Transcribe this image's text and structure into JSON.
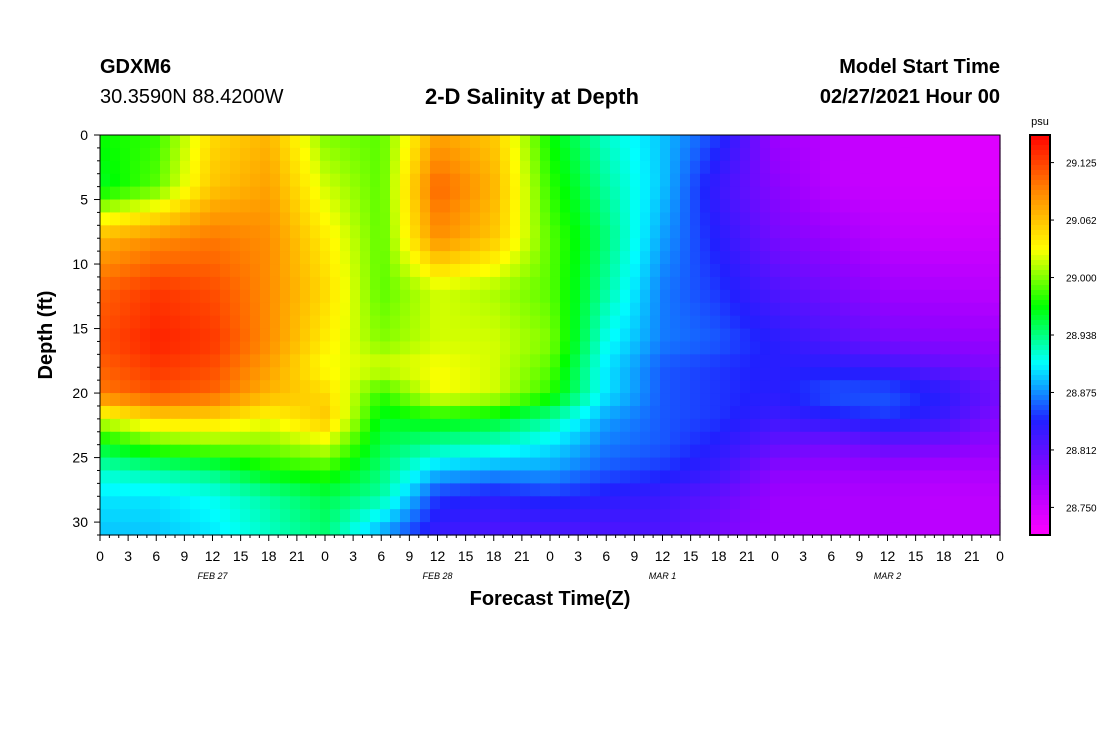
{
  "header": {
    "station": "GDXM6",
    "coordinates": "30.3590N 88.4200W",
    "title": "2-D Salinity at Depth",
    "model_start_label": "Model Start Time",
    "model_start_value": "02/27/2021 Hour 00"
  },
  "chart_data": {
    "type": "heatmap",
    "title": "2-D Salinity at Depth",
    "xlabel": "Forecast Time(Z)",
    "ylabel": "Depth (ft)",
    "ylim": [
      0,
      31
    ],
    "y_ticks": [
      "0",
      "5",
      "10",
      "15",
      "20",
      "25",
      "30"
    ],
    "y_tick_values": [
      0,
      5,
      10,
      15,
      20,
      25,
      30
    ],
    "x_hours": [
      0,
      96
    ],
    "x_tick_labels": [
      "0",
      "3",
      "6",
      "9",
      "12",
      "15",
      "18",
      "21",
      "0",
      "3",
      "6",
      "9",
      "12",
      "15",
      "18",
      "21",
      "0",
      "3",
      "6",
      "9",
      "12",
      "15",
      "18",
      "21",
      "0",
      "3",
      "6",
      "9",
      "12",
      "15",
      "18",
      "21",
      "0"
    ],
    "date_labels": [
      "FEB 27",
      "FEB 28",
      "MAR 1",
      "MAR 2"
    ],
    "colorbar": {
      "unit": "psu",
      "ticks": [
        "29.125",
        "29.062",
        "29.000",
        "28.938",
        "28.875",
        "28.812",
        "28.750"
      ],
      "tick_values": [
        29.125,
        29.0625,
        29.0,
        28.9375,
        28.875,
        28.8125,
        28.75
      ],
      "range": [
        28.72,
        29.155
      ],
      "colors": [
        "#ff00ff",
        "#9900ff",
        "#2020ff",
        "#00ffff",
        "#00ff00",
        "#ffff00",
        "#ff8800",
        "#ff0000"
      ]
    },
    "grid_depths": [
      0,
      4,
      8,
      12,
      16,
      18,
      20,
      22,
      24,
      26,
      28,
      31
    ],
    "grid_hours": [
      0,
      6,
      12,
      18,
      24,
      30,
      36,
      42,
      48,
      54,
      60,
      66,
      72,
      78,
      84,
      90,
      96
    ],
    "salinity": [
      [
        28.97,
        28.98,
        29.05,
        29.07,
        29.0,
        28.99,
        29.08,
        29.06,
        28.97,
        28.92,
        28.89,
        28.85,
        28.78,
        28.76,
        28.75,
        28.74,
        28.74
      ],
      [
        28.96,
        28.99,
        29.06,
        29.08,
        29.02,
        28.99,
        29.11,
        29.07,
        28.98,
        28.93,
        28.89,
        28.83,
        28.79,
        28.76,
        28.75,
        28.74,
        28.74
      ],
      [
        29.07,
        29.09,
        29.1,
        29.09,
        29.04,
        28.99,
        29.09,
        29.06,
        28.99,
        28.94,
        28.88,
        28.84,
        28.8,
        28.78,
        28.76,
        28.75,
        28.75
      ],
      [
        29.11,
        29.13,
        29.12,
        29.09,
        29.05,
        28.99,
        29.02,
        29.01,
        28.99,
        28.93,
        28.87,
        28.85,
        28.82,
        28.8,
        28.78,
        28.77,
        28.76
      ],
      [
        29.12,
        29.14,
        29.13,
        29.09,
        29.04,
        29.0,
        29.02,
        29.02,
        29.0,
        28.91,
        28.87,
        28.86,
        28.84,
        28.82,
        28.8,
        28.79,
        28.78
      ],
      [
        29.11,
        29.13,
        29.12,
        29.08,
        29.03,
        29.02,
        29.03,
        29.02,
        28.99,
        28.9,
        28.86,
        28.85,
        28.84,
        28.84,
        28.83,
        28.81,
        28.79
      ],
      [
        29.1,
        29.12,
        29.11,
        29.07,
        29.05,
        28.98,
        29.03,
        29.02,
        28.98,
        28.9,
        28.86,
        28.85,
        28.84,
        28.86,
        28.86,
        28.84,
        28.8
      ],
      [
        29.02,
        29.05,
        29.05,
        29.03,
        29.06,
        28.96,
        28.97,
        28.96,
        28.93,
        28.88,
        28.86,
        28.85,
        28.83,
        28.84,
        28.85,
        28.83,
        28.79
      ],
      [
        28.96,
        28.99,
        29.0,
        29.0,
        29.02,
        28.95,
        28.93,
        28.92,
        28.9,
        28.87,
        28.86,
        28.84,
        28.81,
        28.8,
        28.81,
        28.8,
        28.78
      ],
      [
        28.92,
        28.93,
        28.94,
        28.97,
        28.98,
        28.94,
        28.89,
        28.88,
        28.88,
        28.86,
        28.85,
        28.83,
        28.79,
        28.78,
        28.78,
        28.77,
        28.77
      ],
      [
        28.9,
        28.9,
        28.91,
        28.93,
        28.95,
        28.93,
        28.85,
        28.84,
        28.85,
        28.84,
        28.83,
        28.81,
        28.78,
        28.77,
        28.77,
        28.76,
        28.76
      ],
      [
        28.89,
        28.89,
        28.9,
        28.92,
        28.94,
        28.88,
        28.83,
        28.82,
        28.82,
        28.82,
        28.82,
        28.8,
        28.78,
        28.77,
        28.77,
        28.76,
        28.76
      ]
    ]
  }
}
